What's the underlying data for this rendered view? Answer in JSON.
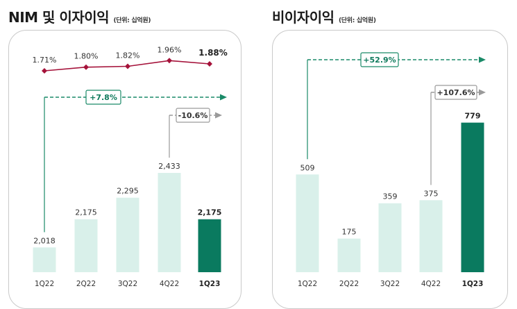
{
  "left_panel": {
    "title": "NIM 및 이자이익",
    "unit": "(단위: 십억원)"
  },
  "right_panel": {
    "title": "비이자이익",
    "unit": "(단위: 십억원)"
  },
  "colors": {
    "bar_light": "#d9f0ea",
    "bar_dark": "#0a7a5f",
    "nim_line": "#a5123a",
    "growth_green": "#1a8a68",
    "growth_gray": "#9a9a9a"
  },
  "chart_data": [
    {
      "type": "bar",
      "title": "NIM 및 이자이익",
      "unit": "(단위: 십억원)",
      "categories": [
        "1Q22",
        "2Q22",
        "3Q22",
        "4Q22",
        "1Q23"
      ],
      "value_labels": [
        "2,018",
        "2,175",
        "2,295",
        "2,433",
        "2,175"
      ],
      "series": [
        {
          "values": [
            2018,
            2175,
            2295,
            2433,
            2175
          ]
        }
      ],
      "nim_labels": [
        "1.71%",
        "1.80%",
        "1.82%",
        "1.96%",
        "1.88%"
      ],
      "nim_values": [
        1.71,
        1.8,
        1.82,
        1.96,
        1.88
      ],
      "annotations": {
        "yoy": "+7.8%",
        "qoq": "-10.6%"
      },
      "highlight_index": 4
    },
    {
      "type": "bar",
      "title": "비이자이익",
      "unit": "(단위: 십억원)",
      "categories": [
        "1Q22",
        "2Q22",
        "3Q22",
        "4Q22",
        "1Q23"
      ],
      "value_labels": [
        "509",
        "175",
        "359",
        "375",
        "779"
      ],
      "series": [
        {
          "values": [
            509,
            175,
            359,
            375,
            779
          ]
        }
      ],
      "annotations": {
        "yoy": "+52.9%",
        "qoq": "+107.6%"
      },
      "highlight_index": 4
    }
  ]
}
